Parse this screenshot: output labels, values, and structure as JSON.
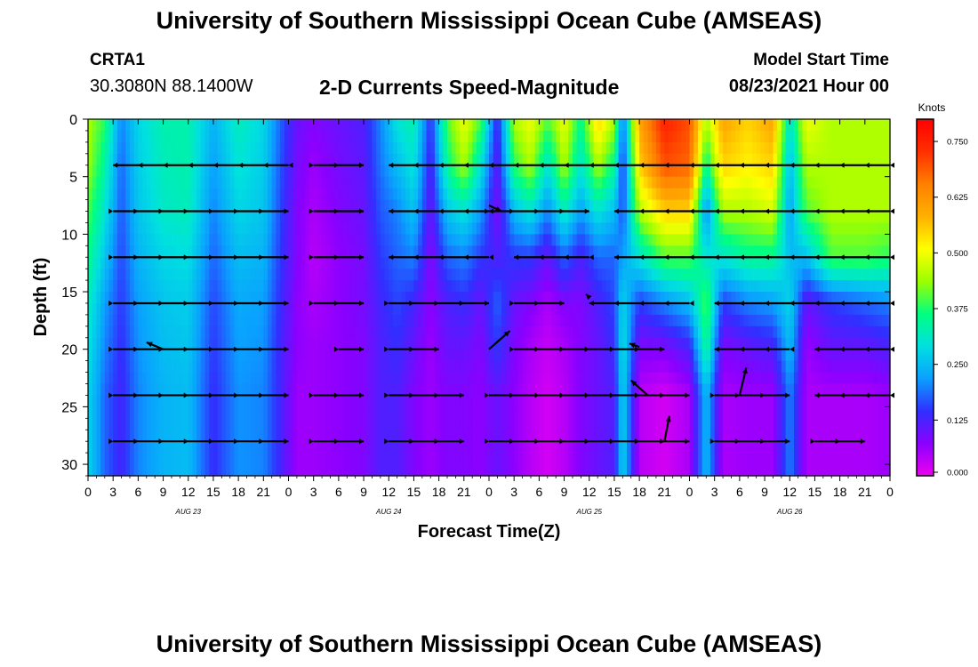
{
  "header": {
    "title": "University of Southern Mississippi Ocean Cube (AMSEAS)",
    "station_id": "CRTA1",
    "station_location": "30.3080N  88.1400W",
    "model_start_label": "Model Start Time",
    "model_start_time": "08/23/2021 Hour 00"
  },
  "footer": {
    "title": "University of Southern Mississippi Ocean Cube (AMSEAS)"
  },
  "chart_data": {
    "type": "heatmap",
    "title": "2-D Currents Speed-Magnitude",
    "xlabel": "Forecast Time(Z)",
    "ylabel": "Depth (ft)",
    "x_range_hours": [
      0,
      96
    ],
    "x_tick_labels": [
      "0",
      "3",
      "6",
      "9",
      "12",
      "15",
      "18",
      "21",
      "0",
      "3",
      "6",
      "9",
      "12",
      "15",
      "18",
      "21",
      "0",
      "3",
      "6",
      "9",
      "12",
      "15",
      "18",
      "21",
      "0",
      "3",
      "6",
      "9",
      "12",
      "15",
      "18",
      "21",
      "0"
    ],
    "day_labels": [
      {
        "hour": 12,
        "label": "AUG 23"
      },
      {
        "hour": 36,
        "label": "AUG 24"
      },
      {
        "hour": 60,
        "label": "AUG 25"
      },
      {
        "hour": 84,
        "label": "AUG 26"
      }
    ],
    "y_range_ft": [
      0,
      31
    ],
    "y_ticks": [
      0,
      5,
      10,
      15,
      20,
      25,
      30
    ],
    "y_reversed": true,
    "vector_depths_ft": [
      4,
      8,
      12,
      16,
      20,
      24,
      28
    ],
    "colorbar": {
      "unit": "Knots",
      "min": 0.0,
      "max": 0.8,
      "tick_labels": [
        "0.750",
        "0.625",
        "0.500",
        "0.375",
        "0.250",
        "0.125",
        "0.000"
      ],
      "tick_values": [
        0.75,
        0.625,
        0.5,
        0.375,
        0.25,
        0.125,
        0.0
      ],
      "colors": [
        "#ee00ee",
        "#8a00ff",
        "#3030ff",
        "#0aa0ff",
        "#00e0e0",
        "#00ff80",
        "#9cff00",
        "#ffff00",
        "#ffb000",
        "#ff8000",
        "#ff3000",
        "#ff0000"
      ]
    },
    "speed_profiles": [
      {
        "hour": 0,
        "speeds": [
          0.45,
          0.44,
          0.4,
          0.36,
          0.32,
          0.3,
          0.28,
          0.28
        ]
      },
      {
        "hour": 2,
        "speeds": [
          0.38,
          0.34,
          0.3,
          0.26,
          0.22,
          0.2,
          0.18,
          0.18
        ]
      },
      {
        "hour": 4,
        "speeds": [
          0.2,
          0.18,
          0.17,
          0.16,
          0.15,
          0.14,
          0.13,
          0.13
        ]
      },
      {
        "hour": 6,
        "speeds": [
          0.28,
          0.27,
          0.26,
          0.24,
          0.22,
          0.21,
          0.2,
          0.2
        ]
      },
      {
        "hour": 9,
        "speeds": [
          0.33,
          0.32,
          0.31,
          0.28,
          0.26,
          0.25,
          0.24,
          0.24
        ]
      },
      {
        "hour": 12,
        "speeds": [
          0.33,
          0.33,
          0.32,
          0.29,
          0.27,
          0.26,
          0.25,
          0.25
        ]
      },
      {
        "hour": 15,
        "speeds": [
          0.24,
          0.22,
          0.2,
          0.18,
          0.16,
          0.15,
          0.14,
          0.14
        ]
      },
      {
        "hour": 18,
        "speeds": [
          0.32,
          0.3,
          0.28,
          0.25,
          0.23,
          0.22,
          0.21,
          0.21
        ]
      },
      {
        "hour": 21,
        "speeds": [
          0.28,
          0.27,
          0.26,
          0.24,
          0.22,
          0.21,
          0.2,
          0.2
        ]
      },
      {
        "hour": 23,
        "speeds": [
          0.18,
          0.17,
          0.16,
          0.15,
          0.14,
          0.13,
          0.13,
          0.13
        ]
      },
      {
        "hour": 25,
        "speeds": [
          0.1,
          0.09,
          0.08,
          0.08,
          0.07,
          0.07,
          0.06,
          0.06
        ]
      },
      {
        "hour": 27,
        "speeds": [
          0.08,
          0.06,
          0.05,
          0.04,
          0.05,
          0.06,
          0.06,
          0.06
        ]
      },
      {
        "hour": 30,
        "speeds": [
          0.1,
          0.09,
          0.08,
          0.07,
          0.07,
          0.07,
          0.07,
          0.07
        ]
      },
      {
        "hour": 33,
        "speeds": [
          0.12,
          0.11,
          0.1,
          0.09,
          0.09,
          0.08,
          0.08,
          0.08
        ]
      },
      {
        "hour": 35,
        "speeds": [
          0.2,
          0.19,
          0.17,
          0.15,
          0.13,
          0.12,
          0.12,
          0.12
        ]
      },
      {
        "hour": 37,
        "speeds": [
          0.3,
          0.25,
          0.2,
          0.18,
          0.16,
          0.14,
          0.12,
          0.12
        ]
      },
      {
        "hour": 39,
        "speeds": [
          0.33,
          0.3,
          0.26,
          0.2,
          0.13,
          0.1,
          0.08,
          0.08
        ]
      },
      {
        "hour": 41,
        "speeds": [
          0.14,
          0.12,
          0.1,
          0.08,
          0.07,
          0.06,
          0.06,
          0.06
        ]
      },
      {
        "hour": 43,
        "speeds": [
          0.4,
          0.35,
          0.26,
          0.18,
          0.12,
          0.1,
          0.08,
          0.08
        ]
      },
      {
        "hour": 45,
        "speeds": [
          0.5,
          0.45,
          0.3,
          0.2,
          0.14,
          0.1,
          0.08,
          0.08
        ]
      },
      {
        "hour": 47,
        "speeds": [
          0.4,
          0.3,
          0.22,
          0.15,
          0.1,
          0.08,
          0.07,
          0.07
        ]
      },
      {
        "hour": 49,
        "speeds": [
          0.12,
          0.1,
          0.08,
          0.12,
          0.18,
          0.15,
          0.1,
          0.1
        ]
      },
      {
        "hour": 51,
        "speeds": [
          0.45,
          0.38,
          0.25,
          0.15,
          0.1,
          0.08,
          0.07,
          0.07
        ]
      },
      {
        "hour": 53,
        "speeds": [
          0.5,
          0.45,
          0.3,
          0.15,
          0.08,
          0.05,
          0.04,
          0.04
        ]
      },
      {
        "hour": 55,
        "speeds": [
          0.4,
          0.3,
          0.2,
          0.1,
          0.05,
          0.03,
          0.02,
          0.02
        ]
      },
      {
        "hour": 57,
        "speeds": [
          0.5,
          0.45,
          0.32,
          0.18,
          0.08,
          0.05,
          0.04,
          0.04
        ]
      },
      {
        "hour": 59,
        "speeds": [
          0.35,
          0.3,
          0.22,
          0.12,
          0.08,
          0.08,
          0.08,
          0.08
        ]
      },
      {
        "hour": 61,
        "speeds": [
          0.55,
          0.45,
          0.3,
          0.18,
          0.12,
          0.1,
          0.1,
          0.1
        ]
      },
      {
        "hour": 63,
        "speeds": [
          0.45,
          0.35,
          0.25,
          0.18,
          0.16,
          0.14,
          0.12,
          0.12
        ]
      },
      {
        "hour": 64,
        "speeds": [
          0.18,
          0.14,
          0.16,
          0.22,
          0.28,
          0.3,
          0.28,
          0.28
        ]
      },
      {
        "hour": 66,
        "speeds": [
          0.6,
          0.55,
          0.45,
          0.3,
          0.15,
          0.08,
          0.04,
          0.04
        ]
      },
      {
        "hour": 69,
        "speeds": [
          0.75,
          0.7,
          0.55,
          0.4,
          0.2,
          0.08,
          0.02,
          0.02
        ]
      },
      {
        "hour": 72,
        "speeds": [
          0.7,
          0.68,
          0.55,
          0.4,
          0.25,
          0.12,
          0.05,
          0.05
        ]
      },
      {
        "hour": 74,
        "speeds": [
          0.45,
          0.35,
          0.2,
          0.3,
          0.4,
          0.35,
          0.25,
          0.25
        ]
      },
      {
        "hour": 76,
        "speeds": [
          0.6,
          0.55,
          0.45,
          0.3,
          0.15,
          0.08,
          0.05,
          0.05
        ]
      },
      {
        "hour": 79,
        "speeds": [
          0.55,
          0.52,
          0.45,
          0.35,
          0.2,
          0.1,
          0.06,
          0.06
        ]
      },
      {
        "hour": 82,
        "speeds": [
          0.6,
          0.55,
          0.48,
          0.35,
          0.22,
          0.12,
          0.06,
          0.06
        ]
      },
      {
        "hour": 84,
        "speeds": [
          0.3,
          0.25,
          0.22,
          0.25,
          0.28,
          0.25,
          0.2,
          0.2
        ]
      },
      {
        "hour": 86,
        "speeds": [
          0.5,
          0.45,
          0.4,
          0.25,
          0.1,
          0.06,
          0.05,
          0.05
        ]
      },
      {
        "hour": 89,
        "speeds": [
          0.45,
          0.45,
          0.45,
          0.4,
          0.15,
          0.1,
          0.05,
          0.05
        ]
      },
      {
        "hour": 93,
        "speeds": [
          0.45,
          0.45,
          0.45,
          0.4,
          0.18,
          0.1,
          0.05,
          0.05
        ]
      },
      {
        "hour": 96,
        "speeds": [
          0.45,
          0.45,
          0.45,
          0.38,
          0.2,
          0.12,
          0.06,
          0.06
        ]
      }
    ],
    "profile_depths_ft": [
      0,
      4,
      8,
      12,
      16,
      20,
      24,
      31
    ],
    "vector_segments": [
      {
        "depth": 4,
        "h0": 3,
        "h1": 24,
        "dir": "west"
      },
      {
        "depth": 4,
        "h0": 27,
        "h1": 33,
        "dir": "east"
      },
      {
        "depth": 4,
        "h0": 36,
        "h1": 96,
        "dir": "west"
      },
      {
        "depth": 8,
        "h0": 3,
        "h1": 24,
        "dir": "east"
      },
      {
        "depth": 8,
        "h0": 27,
        "h1": 33,
        "dir": "east"
      },
      {
        "depth": 8,
        "h0": 36,
        "h1": 48,
        "dir": "west"
      },
      {
        "depth": 8,
        "h0": 48,
        "h1": 60,
        "dir": "east"
      },
      {
        "depth": 8,
        "h0": 63,
        "h1": 96,
        "dir": "west"
      },
      {
        "depth": 12,
        "h0": 3,
        "h1": 24,
        "dir": "east"
      },
      {
        "depth": 12,
        "h0": 27,
        "h1": 33,
        "dir": "east"
      },
      {
        "depth": 12,
        "h0": 36,
        "h1": 48,
        "dir": "west"
      },
      {
        "depth": 12,
        "h0": 51,
        "h1": 60,
        "dir": "west"
      },
      {
        "depth": 12,
        "h0": 63,
        "h1": 96,
        "dir": "west"
      },
      {
        "depth": 16,
        "h0": 3,
        "h1": 24,
        "dir": "east"
      },
      {
        "depth": 16,
        "h0": 27,
        "h1": 33,
        "dir": "east"
      },
      {
        "depth": 16,
        "h0": 36,
        "h1": 48,
        "dir": "east"
      },
      {
        "depth": 16,
        "h0": 51,
        "h1": 57,
        "dir": "east"
      },
      {
        "depth": 16,
        "h0": 60,
        "h1": 72,
        "dir": "west"
      },
      {
        "depth": 16,
        "h0": 75,
        "h1": 96,
        "dir": "west"
      },
      {
        "depth": 20,
        "h0": 3,
        "h1": 24,
        "dir": "east"
      },
      {
        "depth": 20,
        "h0": 30,
        "h1": 33,
        "dir": "east"
      },
      {
        "depth": 20,
        "h0": 36,
        "h1": 42,
        "dir": "east"
      },
      {
        "depth": 20,
        "h0": 51,
        "h1": 69,
        "dir": "east"
      },
      {
        "depth": 20,
        "h0": 75,
        "h1": 84,
        "dir": "west"
      },
      {
        "depth": 20,
        "h0": 87,
        "h1": 96,
        "dir": "west"
      },
      {
        "depth": 24,
        "h0": 3,
        "h1": 24,
        "dir": "east"
      },
      {
        "depth": 24,
        "h0": 27,
        "h1": 33,
        "dir": "east"
      },
      {
        "depth": 24,
        "h0": 36,
        "h1": 45,
        "dir": "east"
      },
      {
        "depth": 24,
        "h0": 48,
        "h1": 72,
        "dir": "east"
      },
      {
        "depth": 24,
        "h0": 75,
        "h1": 84,
        "dir": "east"
      },
      {
        "depth": 24,
        "h0": 87,
        "h1": 96,
        "dir": "west"
      },
      {
        "depth": 28,
        "h0": 3,
        "h1": 24,
        "dir": "east"
      },
      {
        "depth": 28,
        "h0": 27,
        "h1": 33,
        "dir": "east"
      },
      {
        "depth": 28,
        "h0": 36,
        "h1": 45,
        "dir": "east"
      },
      {
        "depth": 28,
        "h0": 48,
        "h1": 72,
        "dir": "east"
      },
      {
        "depth": 28,
        "h0": 75,
        "h1": 84,
        "dir": "east"
      },
      {
        "depth": 28,
        "h0": 87,
        "h1": 93,
        "dir": "east"
      }
    ],
    "oblique_vectors": [
      {
        "hour": 48,
        "depth": 7.5,
        "dx_h": 1.5,
        "dz_ft": 0.5
      },
      {
        "hour": 48,
        "depth": 20,
        "dx_h": 2.5,
        "dz_ft": -1.6
      },
      {
        "hour": 60,
        "depth": 15.5,
        "dx_h": -0.4,
        "dz_ft": -0.3
      },
      {
        "hour": 66,
        "depth": 19.8,
        "dx_h": -1.2,
        "dz_ft": -0.3
      },
      {
        "hour": 67,
        "depth": 24,
        "dx_h": -2.0,
        "dz_ft": -1.3
      },
      {
        "hour": 69,
        "depth": 28,
        "dx_h": 0.6,
        "dz_ft": -2.2
      },
      {
        "hour": 78,
        "depth": 24,
        "dx_h": 0.8,
        "dz_ft": -2.4
      },
      {
        "hour": 9,
        "depth": 20,
        "dx_h": -2.0,
        "dz_ft": -0.6
      }
    ]
  }
}
